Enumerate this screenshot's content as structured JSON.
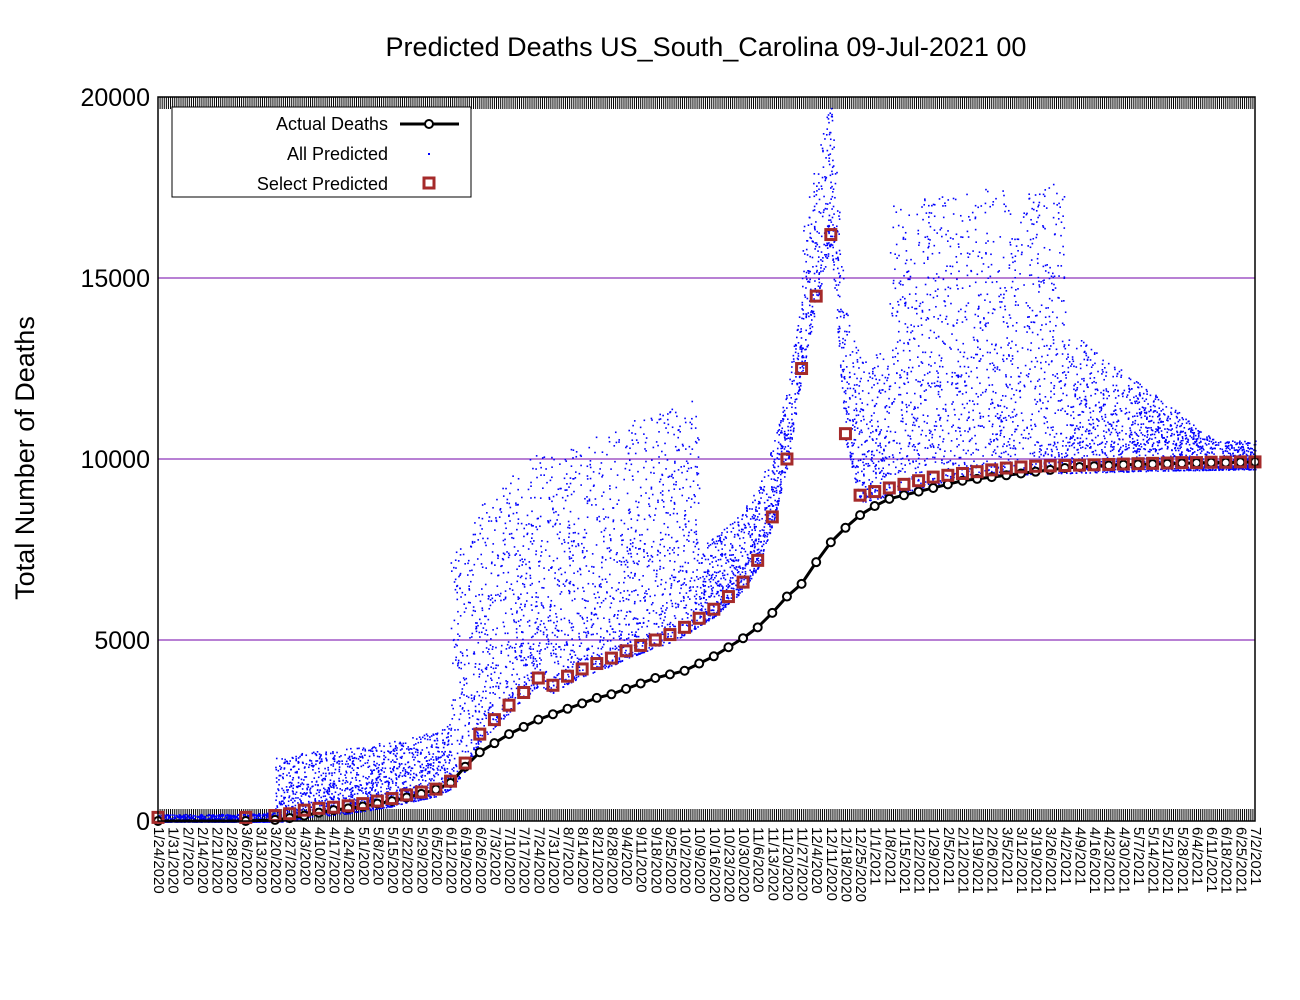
{
  "chart_data": {
    "type": "scatter",
    "title": "Predicted Deaths US_South_Carolina 09-Jul-2021 00",
    "xlabel": "",
    "ylabel": "Total Number of Deaths",
    "ylim": [
      0,
      20000
    ],
    "yticks": [
      0,
      5000,
      10000,
      15000,
      20000
    ],
    "grid": "horizontal",
    "legend_position": "top-left",
    "x_tick_labels": [
      "1/24/2020",
      "1/31/2020",
      "2/7/2020",
      "2/14/2020",
      "2/21/2020",
      "2/28/2020",
      "3/6/2020",
      "3/13/2020",
      "3/20/2020",
      "3/27/2020",
      "4/3/2020",
      "4/10/2020",
      "4/17/2020",
      "4/24/2020",
      "5/1/2020",
      "5/8/2020",
      "5/15/2020",
      "5/22/2020",
      "5/29/2020",
      "6/5/2020",
      "6/12/2020",
      "6/19/2020",
      "6/26/2020",
      "7/3/2020",
      "7/10/2020",
      "7/17/2020",
      "7/24/2020",
      "7/31/2020",
      "8/7/2020",
      "8/14/2020",
      "8/21/2020",
      "8/28/2020",
      "9/4/2020",
      "9/11/2020",
      "9/18/2020",
      "9/25/2020",
      "10/2/2020",
      "10/9/2020",
      "10/16/2020",
      "10/23/2020",
      "10/30/2020",
      "11/6/2020",
      "11/13/2020",
      "11/20/2020",
      "11/27/2020",
      "12/4/2020",
      "12/11/2020",
      "12/18/2020",
      "12/25/2020",
      "1/1/2021",
      "1/8/2021",
      "1/15/2021",
      "1/22/2021",
      "1/29/2021",
      "2/5/2021",
      "2/12/2021",
      "2/19/2021",
      "2/26/2021",
      "3/5/2021",
      "3/12/2021",
      "3/19/2021",
      "3/26/2021",
      "4/2/2021",
      "4/9/2021",
      "4/16/2021",
      "4/23/2021",
      "4/30/2021",
      "5/7/2021",
      "5/14/2021",
      "5/21/2021",
      "5/28/2021",
      "6/4/2021",
      "6/11/2021",
      "6/18/2021",
      "6/25/2021",
      "7/2/2021"
    ],
    "series": [
      {
        "name": "Actual Deaths",
        "style": "line-circles",
        "color": "#000000",
        "x_week_index": [
          0,
          6,
          8,
          9,
          10,
          11,
          12,
          13,
          14,
          15,
          16,
          17,
          18,
          19,
          20,
          21,
          22,
          23,
          24,
          25,
          26,
          27,
          28,
          29,
          30,
          31,
          32,
          33,
          34,
          35,
          36,
          37,
          38,
          39,
          40,
          41,
          42,
          43,
          44,
          45,
          46,
          47,
          48,
          49,
          50,
          51,
          52,
          53,
          54,
          55,
          56,
          57,
          58,
          59,
          60,
          61,
          62,
          63,
          64,
          65,
          66,
          67,
          68,
          69,
          70,
          71,
          72,
          73,
          74,
          75
        ],
        "values": [
          0,
          0,
          30,
          80,
          150,
          230,
          300,
          350,
          400,
          480,
          550,
          650,
          750,
          870,
          1050,
          1500,
          1900,
          2150,
          2400,
          2600,
          2800,
          2950,
          3100,
          3250,
          3400,
          3500,
          3650,
          3800,
          3950,
          4050,
          4150,
          4350,
          4550,
          4800,
          5050,
          5350,
          5750,
          6200,
          6550,
          7150,
          7700,
          8100,
          8450,
          8700,
          8900,
          9000,
          9100,
          9200,
          9300,
          9400,
          9450,
          9500,
          9550,
          9600,
          9650,
          9700,
          9750,
          9780,
          9800,
          9820,
          9840,
          9850,
          9860,
          9870,
          9880,
          9890,
          9900,
          9900,
          9910,
          9920
        ]
      },
      {
        "name": "All Predicted",
        "style": "dots",
        "color": "#0000ff"
      },
      {
        "name": "Select Predicted",
        "style": "open-squares",
        "color": "#a52a2a",
        "x_week_index": [
          0,
          6,
          8,
          9,
          10,
          11,
          12,
          13,
          14,
          15,
          16,
          17,
          18,
          19,
          20,
          21,
          22,
          23,
          24,
          25,
          26,
          27,
          28,
          29,
          30,
          31,
          32,
          33,
          34,
          35,
          36,
          37,
          38,
          39,
          40,
          41,
          42,
          43,
          44,
          45,
          46,
          47,
          48,
          49,
          50,
          51,
          52,
          53,
          54,
          55,
          56,
          57,
          58,
          59,
          60,
          61,
          62,
          63,
          64,
          65,
          66,
          67,
          68,
          69,
          70,
          71,
          72,
          73,
          74,
          75
        ],
        "values": [
          100,
          100,
          150,
          200,
          300,
          350,
          380,
          420,
          480,
          550,
          620,
          720,
          800,
          880,
          1100,
          1600,
          2400,
          2800,
          3200,
          3550,
          3950,
          3750,
          4000,
          4200,
          4350,
          4500,
          4700,
          4850,
          5000,
          5150,
          5350,
          5600,
          5850,
          6200,
          6600,
          7200,
          8400,
          10000,
          12500,
          14500,
          16200,
          10700,
          9000,
          9100,
          9200,
          9300,
          9400,
          9500,
          9550,
          9600,
          9650,
          9700,
          9750,
          9780,
          9800,
          9810,
          9820,
          9830,
          9840,
          9850,
          9860,
          9870,
          9880,
          9890,
          9900,
          9900,
          9910,
          9910,
          9920,
          9920
        ]
      }
    ]
  }
}
